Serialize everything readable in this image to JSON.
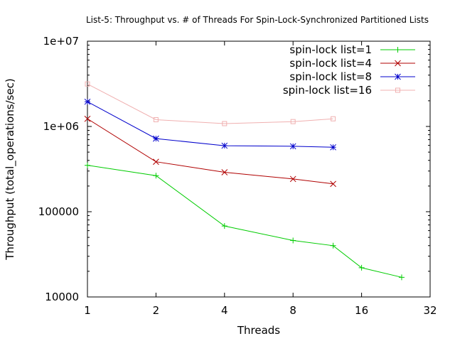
{
  "chart_data": {
    "type": "line",
    "title": "List-5: Throughput vs. # of Threads For Spin-Lock-Synchronized Partitioned Lists",
    "xlabel": "Threads",
    "ylabel": "Throughput (total_operations/sec)",
    "xscale": "log2",
    "yscale": "log10",
    "xlim": [
      1,
      32
    ],
    "ylim": [
      10000,
      10000000
    ],
    "xticks": [
      1,
      2,
      4,
      8,
      16,
      32
    ],
    "xtick_labels": [
      "1",
      "2",
      "4",
      "8",
      "16",
      "32"
    ],
    "yticks": [
      10000,
      100000,
      1000000,
      10000000
    ],
    "ytick_labels": [
      "10000",
      "100000",
      "1e+06",
      "1e+07"
    ],
    "grid": false,
    "legend_position": "top-right",
    "series": [
      {
        "name": "spin-lock list=1",
        "color": "#00cc00",
        "marker": "plus",
        "x": [
          1,
          2,
          4,
          8,
          12,
          16,
          24
        ],
        "y": [
          350000,
          265000,
          68000,
          46000,
          40000,
          22000,
          17000
        ]
      },
      {
        "name": "spin-lock list=4",
        "color": "#b00000",
        "marker": "cross",
        "x": [
          1,
          2,
          4,
          8,
          12
        ],
        "y": [
          1230000,
          385000,
          290000,
          242000,
          212000
        ]
      },
      {
        "name": "spin-lock list=8",
        "color": "#0000cc",
        "marker": "star",
        "x": [
          1,
          2,
          4,
          8,
          12
        ],
        "y": [
          1950000,
          720000,
          595000,
          585000,
          570000
        ]
      },
      {
        "name": "spin-lock list=16",
        "color": "#f0b0b0",
        "marker": "square",
        "x": [
          1,
          2,
          4,
          8,
          12
        ],
        "y": [
          3150000,
          1200000,
          1080000,
          1140000,
          1230000
        ]
      }
    ]
  }
}
